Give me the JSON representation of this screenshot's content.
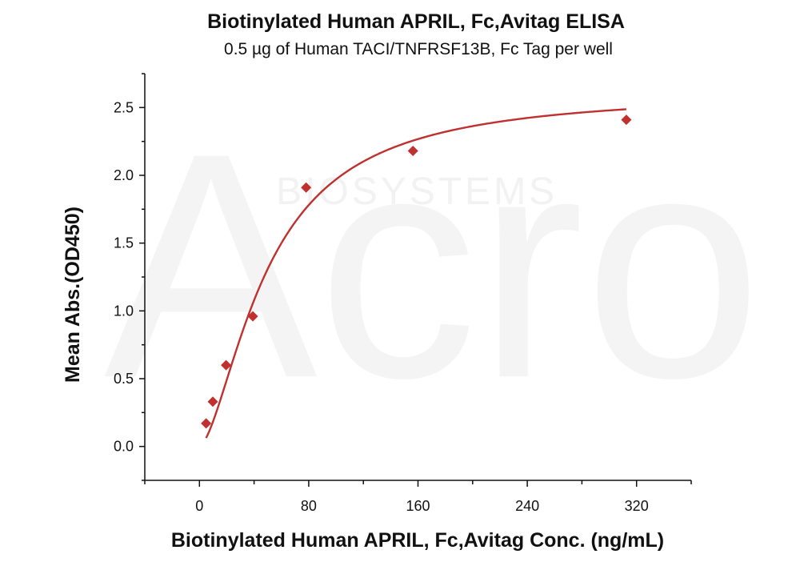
{
  "chart_data": {
    "type": "scatter",
    "title": "Biotinylated Human APRIL, Fc,Avitag ELISA",
    "subtitle": "0.5 µg of Human TACI/TNFRSF13B, Fc Tag per well",
    "xlabel": "Biotinylated Human APRIL, Fc,Avitag Conc. (ng/mL)",
    "ylabel": "Mean Abs.(OD450)",
    "xlim": [
      -40,
      360
    ],
    "ylim": [
      -0.25,
      2.75
    ],
    "x_ticks": [
      0,
      80,
      160,
      240,
      320
    ],
    "y_ticks": [
      0.0,
      0.5,
      1.0,
      1.5,
      2.0,
      2.5
    ],
    "x_tick_labels": [
      "0",
      "80",
      "160",
      "240",
      "320"
    ],
    "y_tick_labels": [
      "0.0",
      "0.5",
      "1.0",
      "1.5",
      "2.0",
      "2.5"
    ],
    "grid": false,
    "series": [
      {
        "color": "#c0302f",
        "marker": "diamond",
        "fit": "4-parameter logistic curve",
        "x": [
          4.9,
          9.8,
          19.5,
          39.1,
          78.1,
          156.3,
          312.5
        ],
        "y": [
          0.17,
          0.33,
          0.6,
          0.96,
          1.91,
          2.18,
          2.41
        ]
      }
    ]
  },
  "watermark": {
    "brand": "Acro",
    "sub": "BIOSYSTEMS"
  }
}
